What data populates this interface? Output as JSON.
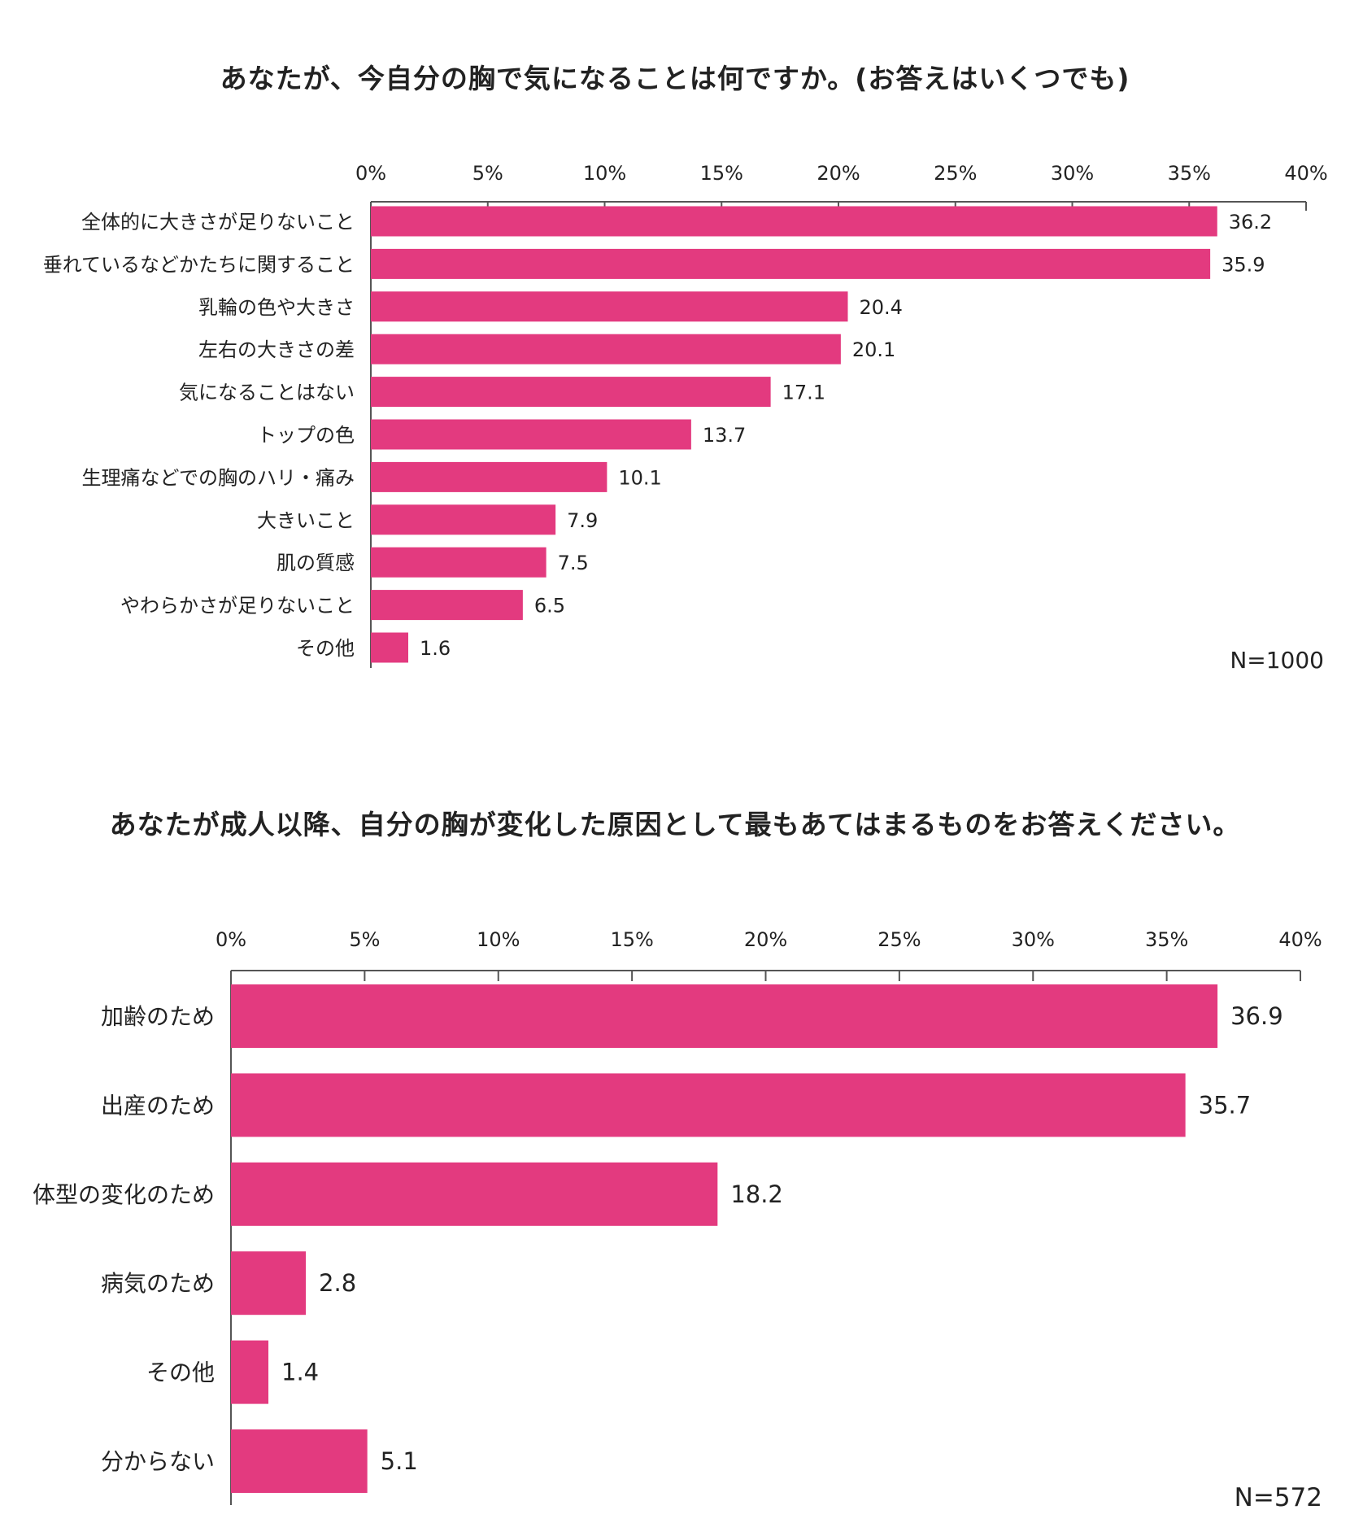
{
  "charts": [
    {
      "title": "あなたが、今自分の胸で気になることは何ですか。(お答えはいくつでも)",
      "note": "N=1000"
    },
    {
      "title": "あなたが成人以降、自分の胸が変化した原因として最もあてはまるものをお答えください。",
      "note": "N=572"
    }
  ],
  "colors": {
    "bar": "#E33A7F",
    "axis": "#555555",
    "text": "#222222"
  },
  "chart_data": [
    {
      "type": "bar",
      "orientation": "horizontal",
      "title": "あなたが、今自分の胸で気になることは何ですか。(お答えはいくつでも)",
      "categories": [
        "全体的に大きさが足りないこと",
        "垂れているなどかたちに関すること",
        "乳輪の色や大きさ",
        "左右の大きさの差",
        "気になることはない",
        "トップの色",
        "生理痛などでの胸のハリ・痛み",
        "大きいこと",
        "肌の質感",
        "やわらかさが足りないこと",
        "その他"
      ],
      "values": [
        36.2,
        35.9,
        20.4,
        20.1,
        17.1,
        13.7,
        10.1,
        7.9,
        7.5,
        6.5,
        1.6
      ],
      "value_labels": [
        "36.2",
        "35.9",
        "20.4",
        "20.1",
        "17.1",
        "13.7",
        "10.1",
        "7.9",
        "7.5",
        "6.5",
        "1.6"
      ],
      "xlim": [
        0,
        40
      ],
      "x_ticks": [
        "0%",
        "5%",
        "10%",
        "15%",
        "20%",
        "25%",
        "30%",
        "35%",
        "40%"
      ],
      "axis_position": "top",
      "grid": false,
      "note": "N=1000"
    },
    {
      "type": "bar",
      "orientation": "horizontal",
      "title": "あなたが成人以降、自分の胸が変化した原因として最もあてはまるものをお答えください。",
      "categories": [
        "加齢のため",
        "出産のため",
        "体型の変化のため",
        "病気のため",
        "その他",
        "分からない"
      ],
      "values": [
        36.9,
        35.7,
        18.2,
        2.8,
        1.4,
        5.1
      ],
      "value_labels": [
        "36.9",
        "35.7",
        "18.2",
        "2.8",
        "1.4",
        "5.1"
      ],
      "xlim": [
        0,
        40
      ],
      "x_ticks": [
        "0%",
        "5%",
        "10%",
        "15%",
        "20%",
        "25%",
        "30%",
        "35%",
        "40%"
      ],
      "axis_position": "top",
      "grid": false,
      "note": "N=572"
    }
  ]
}
